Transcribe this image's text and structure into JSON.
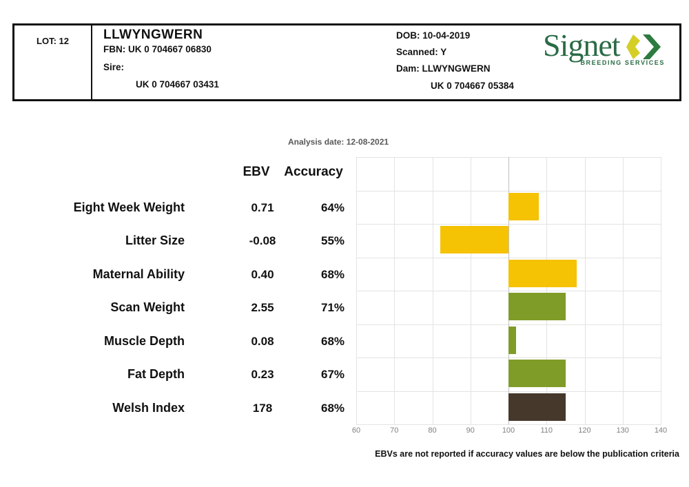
{
  "header": {
    "lot_label": "LOT: 12",
    "name": "LLWYNGWERN",
    "fbn": "FBN: UK 0 704667 06830",
    "sire_label": "Sire:",
    "sire_id": "UK 0 704667 03431",
    "dob": "DOB: 10-04-2019",
    "scanned": "Scanned: Y",
    "dam": "Dam: LLWYNGWERN",
    "dam_id": "UK 0 704667 05384"
  },
  "logo": {
    "text": "Signet",
    "subtext": "BREEDING SERVICES",
    "green": "#2A6B45",
    "diamond_yellow": "#D5CE26",
    "chevron_green": "#2E7B40"
  },
  "analysis_date": "Analysis date: 12-08-2021",
  "table": {
    "ebv_header": "EBV",
    "accuracy_header": "Accuracy"
  },
  "chart_data": {
    "type": "bar",
    "orientation": "horizontal",
    "categories": [
      "Eight Week Weight",
      "Litter Size",
      "Maternal Ability",
      "Scan Weight",
      "Muscle Depth",
      "Fat Depth",
      "Welsh Index"
    ],
    "series": [
      {
        "name": "EBV",
        "values": [
          "0.71",
          "-0.08",
          "0.40",
          "2.55",
          "0.08",
          "0.23",
          "178"
        ]
      },
      {
        "name": "Accuracy",
        "values": [
          "64%",
          "55%",
          "68%",
          "71%",
          "68%",
          "67%",
          "68%"
        ]
      }
    ],
    "bar_segments": [
      [
        100,
        108
      ],
      [
        82,
        100
      ],
      [
        100,
        118
      ],
      [
        100,
        115
      ],
      [
        100,
        102
      ],
      [
        100,
        115
      ],
      [
        100,
        115
      ]
    ],
    "bar_colors": [
      "#F5C204",
      "#F5C204",
      "#F5C204",
      "#7F9C28",
      "#7F9C28",
      "#7F9C28",
      "#46382A"
    ],
    "xlim": [
      60,
      140
    ],
    "x_ticks": [
      60,
      70,
      80,
      90,
      100,
      110,
      120,
      130,
      140
    ],
    "baseline": 100,
    "grid": true,
    "legend_position": "none",
    "title": "",
    "xlabel": "",
    "ylabel": ""
  },
  "colors": {
    "grid": "#E3E3E3",
    "baseline_grid": "#BFBFBF",
    "axis_text": "#7F7F7F",
    "analysis_date_text": "#595959"
  },
  "footnote": "EBVs are not reported if accuracy values are below the publication criteria"
}
